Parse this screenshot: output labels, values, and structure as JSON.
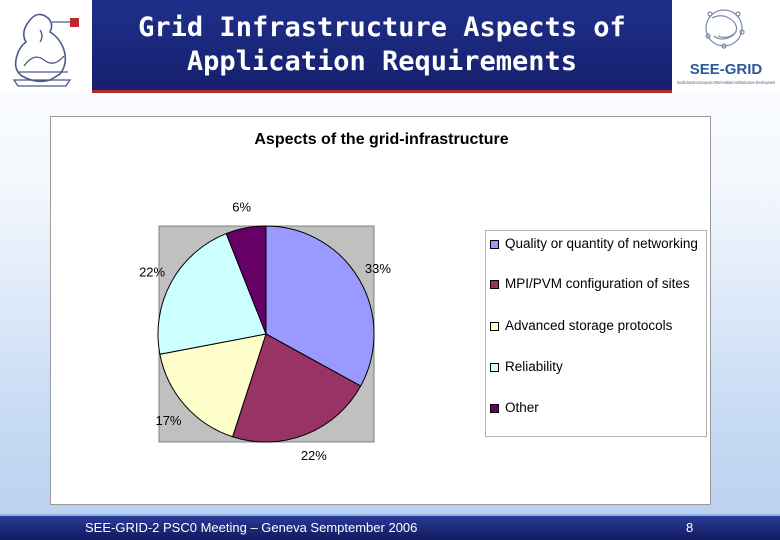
{
  "header": {
    "title": "Grid Infrastructure Aspects of\nApplication Requirements",
    "logo_right_text": "SEE-GRID",
    "logo_right_sub": "South Eastern European GRid-enabled eInfrastructure Development"
  },
  "chart_data": {
    "type": "pie",
    "title": "Aspects of the grid-infrastructure",
    "slices": [
      {
        "label": "Quality or quantity of networking",
        "value": 33,
        "display": "33%",
        "color": "#9999ff"
      },
      {
        "label": "MPI/PVM configuration of sites",
        "value": 22,
        "display": "22%",
        "color": "#993366"
      },
      {
        "label": "Advanced storage protocols",
        "value": 17,
        "display": "17%",
        "color": "#ffffcc"
      },
      {
        "label": "Reliability",
        "value": 22,
        "display": "22%",
        "color": "#ccffff"
      },
      {
        "label": "Other",
        "value": 6,
        "display": "6%",
        "color": "#660066"
      }
    ],
    "legend_position": "right",
    "plot_background": "#c0c0c0"
  },
  "footer": {
    "text": "SEE-GRID-2 PSC0 Meeting – Geneva Semptember 2006",
    "page": "8"
  }
}
